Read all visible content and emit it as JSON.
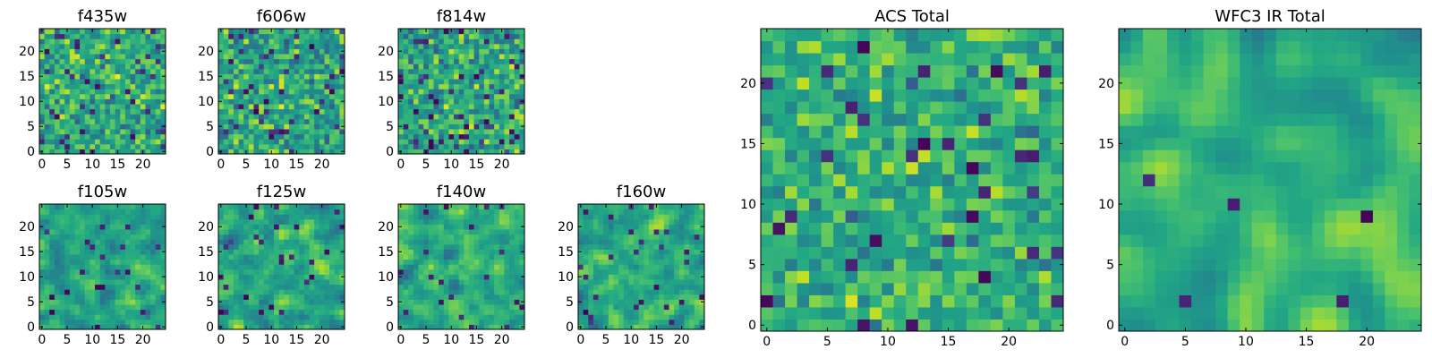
{
  "figure": {
    "colormap": "viridis",
    "grid_size": 25
  },
  "chart_data": [
    {
      "type": "heatmap",
      "title": "f435w",
      "xticks": [
        "0",
        "5",
        "10",
        "15",
        "20"
      ],
      "yticks": [
        "0",
        "5",
        "10",
        "15",
        "20"
      ],
      "xlim": [
        0,
        25
      ],
      "ylim": [
        0,
        25
      ],
      "seed": 11,
      "mean": 0.62,
      "spread": 0.26,
      "smooth": 0,
      "dark_fraction": 0.05
    },
    {
      "type": "heatmap",
      "title": "f606w",
      "xticks": [
        "0",
        "5",
        "10",
        "15",
        "20"
      ],
      "yticks": [
        "0",
        "5",
        "10",
        "15",
        "20"
      ],
      "xlim": [
        0,
        25
      ],
      "ylim": [
        0,
        25
      ],
      "seed": 23,
      "mean": 0.6,
      "spread": 0.28,
      "smooth": 0,
      "dark_fraction": 0.07
    },
    {
      "type": "heatmap",
      "title": "f814w",
      "xticks": [
        "0",
        "5",
        "10",
        "15",
        "20"
      ],
      "yticks": [
        "0",
        "5",
        "10",
        "15",
        "20"
      ],
      "xlim": [
        0,
        25
      ],
      "ylim": [
        0,
        25
      ],
      "seed": 37,
      "mean": 0.6,
      "spread": 0.28,
      "smooth": 0,
      "dark_fraction": 0.07
    },
    {
      "type": "heatmap",
      "title": "f105w",
      "xticks": [
        "0",
        "5",
        "10",
        "15",
        "20"
      ],
      "yticks": [
        "0",
        "5",
        "10",
        "15",
        "20"
      ],
      "xlim": [
        0,
        25
      ],
      "ylim": [
        0,
        25
      ],
      "seed": 41,
      "mean": 0.58,
      "spread": 0.3,
      "smooth": 1,
      "dark_fraction": 0.05
    },
    {
      "type": "heatmap",
      "title": "f125w",
      "xticks": [
        "0",
        "5",
        "10",
        "15",
        "20"
      ],
      "yticks": [
        "0",
        "5",
        "10",
        "15",
        "20"
      ],
      "xlim": [
        0,
        25
      ],
      "ylim": [
        0,
        25
      ],
      "seed": 53,
      "mean": 0.6,
      "spread": 0.3,
      "smooth": 1,
      "dark_fraction": 0.04
    },
    {
      "type": "heatmap",
      "title": "f140w",
      "xticks": [
        "0",
        "5",
        "10",
        "15",
        "20"
      ],
      "yticks": [
        "0",
        "5",
        "10",
        "15",
        "20"
      ],
      "xlim": [
        0,
        25
      ],
      "ylim": [
        0,
        25
      ],
      "seed": 67,
      "mean": 0.62,
      "spread": 0.3,
      "smooth": 1,
      "dark_fraction": 0.04
    },
    {
      "type": "heatmap",
      "title": "f160w",
      "xticks": [
        "0",
        "5",
        "10",
        "15",
        "20"
      ],
      "yticks": [
        "0",
        "5",
        "10",
        "15",
        "20"
      ],
      "xlim": [
        0,
        25
      ],
      "ylim": [
        0,
        25
      ],
      "seed": 79,
      "mean": 0.62,
      "spread": 0.3,
      "smooth": 1,
      "dark_fraction": 0.04
    },
    {
      "type": "heatmap",
      "title": "ACS Total",
      "xticks": [
        "0",
        "5",
        "10",
        "15",
        "20"
      ],
      "yticks": [
        "0",
        "5",
        "10",
        "15",
        "20"
      ],
      "xlim": [
        0,
        25
      ],
      "ylim": [
        0,
        25
      ],
      "seed": 97,
      "mean": 0.64,
      "spread": 0.22,
      "smooth": 0,
      "dark_fraction": 0.04
    },
    {
      "type": "heatmap",
      "title": "WFC3 IR Total",
      "xticks": [
        "0",
        "5",
        "10",
        "15",
        "20"
      ],
      "yticks": [
        "0",
        "5",
        "10",
        "15",
        "20"
      ],
      "xlim": [
        0,
        25
      ],
      "ylim": [
        0,
        25
      ],
      "seed": 131,
      "mean": 0.66,
      "spread": 0.24,
      "smooth": 2,
      "dark_fraction": 0.02
    }
  ]
}
